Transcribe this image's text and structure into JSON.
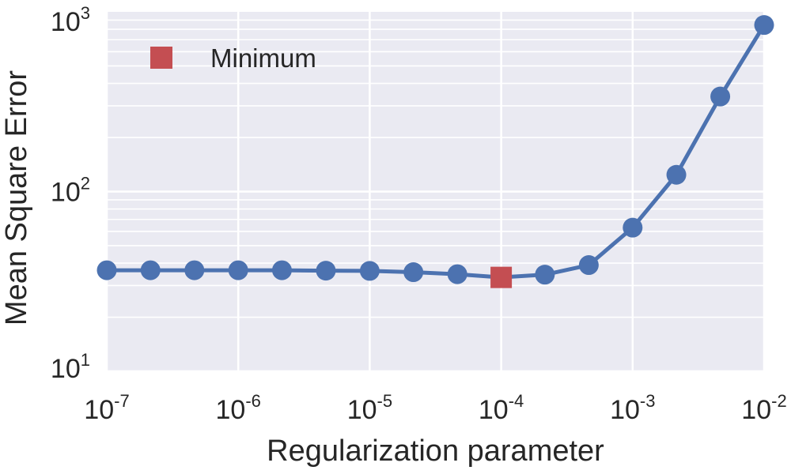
{
  "chart_data": {
    "type": "line",
    "xlabel": "Regularization parameter",
    "ylabel": "Mean Square Error",
    "x_scale": "log",
    "y_scale": "log",
    "xlim": [
      1e-07,
      0.01
    ],
    "ylim": [
      10,
      1000
    ],
    "grid": true,
    "legend_position": "top-left",
    "x_ticks": [
      {
        "value": 1e-07,
        "base": "10",
        "exp": "-7"
      },
      {
        "value": 1e-06,
        "base": "10",
        "exp": "-6"
      },
      {
        "value": 1e-05,
        "base": "10",
        "exp": "-5"
      },
      {
        "value": 0.0001,
        "base": "10",
        "exp": "-4"
      },
      {
        "value": 0.001,
        "base": "10",
        "exp": "-3"
      },
      {
        "value": 0.01,
        "base": "10",
        "exp": "-2"
      }
    ],
    "y_ticks": [
      {
        "value": 10,
        "base": "10",
        "exp": "1"
      },
      {
        "value": 100,
        "base": "10",
        "exp": "2"
      },
      {
        "value": 1000,
        "base": "10",
        "exp": "3"
      }
    ],
    "series": [
      {
        "color": "#4c72b0",
        "points": [
          {
            "x": 1e-07,
            "y": 36.5
          },
          {
            "x": 2.15e-07,
            "y": 36.5
          },
          {
            "x": 4.64e-07,
            "y": 36.5
          },
          {
            "x": 1e-06,
            "y": 36.5
          },
          {
            "x": 2.15e-06,
            "y": 36.5
          },
          {
            "x": 4.64e-06,
            "y": 36.3
          },
          {
            "x": 1e-05,
            "y": 36.2
          },
          {
            "x": 2.15e-05,
            "y": 35.6
          },
          {
            "x": 4.64e-05,
            "y": 34.7
          },
          {
            "x": 0.0001,
            "y": 33.3
          },
          {
            "x": 0.000215,
            "y": 34.5
          },
          {
            "x": 0.000464,
            "y": 39.0
          },
          {
            "x": 0.001,
            "y": 63.0
          },
          {
            "x": 0.00215,
            "y": 124.0
          },
          {
            "x": 0.00464,
            "y": 338.0
          },
          {
            "x": 0.01,
            "y": 845.0
          }
        ]
      },
      {
        "name": "Minimum",
        "color": "#c44e52",
        "marker": "square",
        "points": [
          {
            "x": 0.0001,
            "y": 33.3
          }
        ]
      }
    ]
  },
  "colors": {
    "plot_background": "#eaeaf2",
    "grid": "#ffffff",
    "text": "#262626"
  }
}
